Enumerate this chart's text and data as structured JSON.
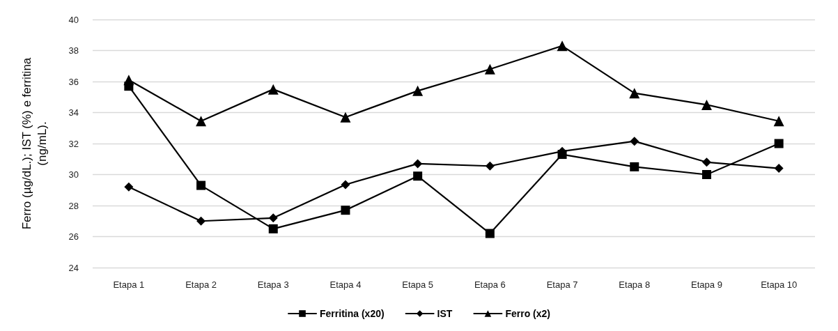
{
  "chart_data": {
    "type": "line",
    "ylabel": "Ferro (µg/dL.); IST (%) e ferritina\n(ng/mL).",
    "categories": [
      "Etapa 1",
      "Etapa 2",
      "Etapa 3",
      "Etapa 4",
      "Etapa 5",
      "Etapa 6",
      "Etapa 7",
      "Etapa 8",
      "Etapa 9",
      "Etapa 10"
    ],
    "series": [
      {
        "name": "Ferritina (x20)",
        "color": "#000000",
        "marker": "square",
        "values": [
          35.7,
          29.3,
          26.5,
          27.7,
          29.9,
          26.2,
          31.3,
          30.5,
          30.0,
          32.0
        ]
      },
      {
        "name": "IST",
        "color": "#000000",
        "marker": "diamond",
        "values": [
          29.2,
          27.0,
          27.2,
          29.35,
          30.7,
          30.55,
          31.5,
          32.15,
          30.8,
          30.4
        ]
      },
      {
        "name": "Ferro (x2)",
        "color": "#000000",
        "marker": "triangle",
        "values": [
          36.1,
          33.45,
          35.5,
          33.7,
          35.4,
          36.8,
          38.3,
          35.25,
          34.5,
          33.45
        ]
      }
    ],
    "ylim": [
      24,
      40
    ],
    "yticks": [
      24,
      26,
      28,
      30,
      32,
      34,
      36,
      38,
      40
    ],
    "grid": "y",
    "legend": "bottom",
    "line_style": "solid"
  }
}
